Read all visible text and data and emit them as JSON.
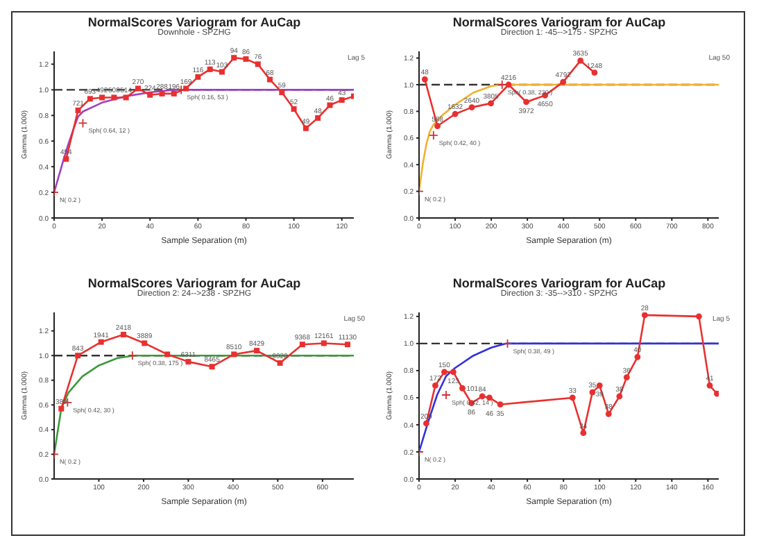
{
  "chart_data": [
    {
      "type": "line",
      "title": "NormalScores  Variogram for AuCap",
      "subtitle": "Downhole - SPZHG",
      "xlabel": "Sample Separation (m)",
      "ylabel": "Gamma (1.000)",
      "grid": false,
      "legend": false,
      "xlim": [
        0,
        125
      ],
      "xticks": [
        0,
        20,
        40,
        60,
        80,
        100,
        120
      ],
      "ylim": [
        0,
        1.3
      ],
      "yticks": [
        {
          "value": 0,
          "label": "0.0"
        },
        {
          "value": 0.2,
          "label": "0.2"
        },
        {
          "value": 0.4,
          "label": "0.4"
        },
        {
          "value": 0.6,
          "label": "0.6"
        },
        {
          "value": 0.8,
          "label": "0.8"
        },
        {
          "value": 1,
          "label": "1.0"
        },
        {
          "value": 1.2,
          "label": "1.2"
        }
      ],
      "ref_lines": [
        {
          "axis": "y",
          "value": 1,
          "color": "#333333",
          "line_style": "dashed"
        }
      ],
      "annotations": [
        {
          "text": "N( 0.2 )",
          "x": 0,
          "y": 0.2
        },
        {
          "text": "Sph( 0.64, 12 )",
          "x": 12,
          "y": 0.74
        },
        {
          "text": "Sph( 0.16, 53 )",
          "x": 53,
          "y": 1.0
        },
        "Lag 5",
        {
          "text": "454",
          "x": 5,
          "y": 0.46
        },
        {
          "text": "721",
          "x": 10,
          "y": 0.84
        },
        {
          "text": "693",
          "x": 15,
          "y": 0.93
        },
        {
          "text": "492",
          "x": 20,
          "y": 0.94
        },
        {
          "text": "508",
          "x": 25,
          "y": 0.94
        },
        {
          "text": "514",
          "x": 30,
          "y": 0.94
        },
        {
          "text": "270",
          "x": 35,
          "y": 1.01
        },
        {
          "text": "224",
          "x": 40,
          "y": 0.96
        },
        {
          "text": "288",
          "x": 45,
          "y": 0.97
        },
        {
          "text": "196",
          "x": 50,
          "y": 0.97
        },
        {
          "text": "169",
          "x": 55,
          "y": 1.01
        },
        {
          "text": "116",
          "x": 60,
          "y": 1.1
        },
        {
          "text": "113",
          "x": 65,
          "y": 1.16
        },
        {
          "text": "103",
          "x": 70,
          "y": 1.14
        },
        {
          "text": "94",
          "x": 75,
          "y": 1.25
        },
        {
          "text": "86",
          "x": 80,
          "y": 1.24
        },
        {
          "text": "76",
          "x": 85,
          "y": 1.2
        },
        {
          "text": "68",
          "x": 90,
          "y": 1.08
        },
        {
          "text": "59",
          "x": 95,
          "y": 0.98
        },
        {
          "text": "52",
          "x": 100,
          "y": 0.85
        },
        {
          "text": "49",
          "x": 105,
          "y": 0.7
        },
        {
          "text": "48",
          "x": 110,
          "y": 0.78
        },
        {
          "text": "46",
          "x": 115,
          "y": 0.88
        },
        {
          "text": "43",
          "x": 120,
          "y": 0.92
        }
      ],
      "series": [
        {
          "color": "#a040c0",
          "marker": "none",
          "x": [
            0,
            2,
            4,
            6,
            8,
            10,
            12,
            20,
            30,
            40,
            50,
            53,
            125
          ],
          "values": [
            0.2,
            0.33,
            0.46,
            0.58,
            0.69,
            0.79,
            0.83,
            0.9,
            0.95,
            0.98,
            1.0,
            1.0,
            1.0
          ]
        },
        {
          "color": "#e83030",
          "marker": "square",
          "x": [
            5,
            10,
            15,
            20,
            25,
            30,
            35,
            40,
            45,
            50,
            55,
            60,
            65,
            70,
            75,
            80,
            85,
            90,
            95,
            100,
            105,
            110,
            115,
            120,
            125
          ],
          "values": [
            0.46,
            0.84,
            0.93,
            0.94,
            0.94,
            0.94,
            1.01,
            0.96,
            0.97,
            0.97,
            1.01,
            1.1,
            1.16,
            1.14,
            1.25,
            1.24,
            1.2,
            1.08,
            0.98,
            0.85,
            0.7,
            0.78,
            0.88,
            0.92,
            0.95
          ]
        },
        {
          "type": "scatter",
          "color": "#d03030",
          "marker": "cross",
          "x": [
            0,
            12,
            53
          ],
          "values": [
            0.2,
            0.74,
            1.0
          ]
        }
      ]
    },
    {
      "type": "line",
      "title": "NormalScores  Variogram for AuCap",
      "subtitle": "Direction 1: -45-->175 - SPZHG",
      "xlabel": "Sample Separation (m)",
      "ylabel": "Gamma (1.000)",
      "grid": false,
      "legend": false,
      "xlim": [
        0,
        830
      ],
      "xticks": [
        0,
        100,
        200,
        300,
        400,
        500,
        600,
        700,
        800
      ],
      "ylim": [
        0,
        1.25
      ],
      "yticks": [
        {
          "value": 0,
          "label": "0.0"
        },
        {
          "value": 0.2,
          "label": "0.2"
        },
        {
          "value": 0.4,
          "label": "0.4"
        },
        {
          "value": 0.6,
          "label": "0.6"
        },
        {
          "value": 0.8,
          "label": "0.8"
        },
        {
          "value": 1,
          "label": "1.0"
        },
        {
          "value": 1.2,
          "label": "1.2"
        }
      ],
      "ref_lines": [
        {
          "axis": "y",
          "value": 1,
          "color": "#333333",
          "line_style": "dashed"
        }
      ],
      "annotations": [
        {
          "text": "N( 0.2 )",
          "x": 0,
          "y": 0.2
        },
        {
          "text": "Sph( 0.42, 40 )",
          "x": 40,
          "y": 0.62
        },
        {
          "text": "Sph( 0.38, 230 )",
          "x": 230,
          "y": 1.0
        },
        "Lag 50",
        {
          "text": "48",
          "x": 16,
          "y": 1.04
        },
        {
          "text": "588",
          "x": 51,
          "y": 0.69
        },
        {
          "text": "1632",
          "x": 100,
          "y": 0.78
        },
        {
          "text": "2640",
          "x": 146,
          "y": 0.83
        },
        {
          "text": "3805",
          "x": 199,
          "y": 0.86
        },
        {
          "text": "4216",
          "x": 248,
          "y": 1.0
        },
        {
          "text": "3972",
          "x": 297,
          "y": 0.87
        },
        {
          "text": "4650",
          "x": 349,
          "y": 0.92
        },
        {
          "text": "4792",
          "x": 399,
          "y": 1.02
        },
        {
          "text": "3635",
          "x": 447,
          "y": 1.18
        },
        {
          "text": "1248",
          "x": 486,
          "y": 1.09
        }
      ],
      "series": [
        {
          "color": "#f0b030",
          "marker": "none",
          "x": [
            0,
            10,
            20,
            30,
            40,
            60,
            100,
            150,
            200,
            230,
            830
          ],
          "values": [
            0.2,
            0.4,
            0.55,
            0.65,
            0.7,
            0.76,
            0.85,
            0.94,
            0.99,
            1.0,
            1.0
          ]
        },
        {
          "color": "#e83030",
          "marker": "circle",
          "x": [
            16,
            51,
            100,
            146,
            199,
            248,
            297,
            349,
            399,
            447,
            486
          ],
          "values": [
            1.04,
            0.69,
            0.78,
            0.83,
            0.86,
            1.0,
            0.87,
            0.92,
            1.02,
            1.18,
            1.09
          ]
        },
        {
          "type": "scatter",
          "color": "#d03030",
          "marker": "cross",
          "x": [
            0,
            40,
            230
          ],
          "values": [
            0.2,
            0.62,
            1.0
          ]
        }
      ]
    },
    {
      "type": "line",
      "title": "NormalScores  Variogram for AuCap",
      "subtitle": "Direction 2: 24-->238 - SPZHG",
      "xlabel": "Sample Separation (m)",
      "ylabel": "Gamma (1.000)",
      "grid": false,
      "legend": false,
      "xlim": [
        0,
        670
      ],
      "xticks": [
        100,
        200,
        300,
        400,
        500,
        600
      ],
      "ylim": [
        0,
        1.35
      ],
      "yticks": [
        {
          "value": 0,
          "label": "0.0"
        },
        {
          "value": 0.2,
          "label": "0.2"
        },
        {
          "value": 0.4,
          "label": "0.4"
        },
        {
          "value": 0.6,
          "label": "0.6"
        },
        {
          "value": 0.8,
          "label": "0.8"
        },
        {
          "value": 1,
          "label": "1.0"
        },
        {
          "value": 1.2,
          "label": "1.2"
        }
      ],
      "ref_lines": [
        {
          "axis": "y",
          "value": 1,
          "color": "#333333",
          "line_style": "dashed"
        }
      ],
      "annotations": [
        {
          "text": "N( 0.2 )",
          "x": 0,
          "y": 0.2
        },
        {
          "text": "Sph( 0.42, 30 )",
          "x": 30,
          "y": 0.62
        },
        {
          "text": "Sph( 0.38, 175 )",
          "x": 175,
          "y": 1.0
        },
        "Lag 50",
        {
          "text": "389",
          "x": 16,
          "y": 0.57
        },
        {
          "text": "843",
          "x": 53,
          "y": 1.0
        },
        {
          "text": "1941",
          "x": 105,
          "y": 1.11
        },
        {
          "text": "2418",
          "x": 155,
          "y": 1.17
        },
        {
          "text": "3889",
          "x": 202,
          "y": 1.1
        },
        {
          "text": "6311",
          "x": 300,
          "y": 0.95
        },
        {
          "text": "8465",
          "x": 353,
          "y": 0.91
        },
        {
          "text": "8510",
          "x": 402,
          "y": 1.01
        },
        {
          "text": "8429",
          "x": 453,
          "y": 1.04
        },
        {
          "text": "9020",
          "x": 505,
          "y": 0.94
        },
        {
          "text": "9368",
          "x": 555,
          "y": 1.09
        },
        {
          "text": "12161",
          "x": 603,
          "y": 1.1
        },
        {
          "text": "11130",
          "x": 656,
          "y": 1.09
        }
      ],
      "series": [
        {
          "color": "#3a9a3a",
          "marker": "none",
          "x": [
            0,
            16,
            32,
            63,
            100,
            142,
            179,
            670
          ],
          "values": [
            0.2,
            0.57,
            0.7,
            0.83,
            0.92,
            0.98,
            1.0,
            1.0
          ]
        },
        {
          "color": "#e83030",
          "marker": "square",
          "x": [
            16,
            53,
            105,
            155,
            202,
            253,
            300,
            353,
            402,
            453,
            505,
            555,
            603,
            656
          ],
          "values": [
            0.57,
            1.0,
            1.11,
            1.17,
            1.1,
            1.01,
            0.95,
            0.91,
            1.01,
            1.04,
            0.94,
            1.09,
            1.1,
            1.09
          ]
        },
        {
          "type": "scatter",
          "color": "#d03030",
          "marker": "cross",
          "x": [
            0,
            30,
            175
          ],
          "values": [
            0.2,
            0.62,
            1.0
          ]
        }
      ]
    },
    {
      "type": "line",
      "title": "NormalScores  Variogram for AuCap",
      "subtitle": "Direction 3: -35-->310 - SPZHG",
      "xlabel": "Sample Separation (m)",
      "ylabel": "Gamma (1.000)",
      "grid": false,
      "legend": false,
      "xlim": [
        0,
        166
      ],
      "xticks": [
        0,
        20,
        40,
        60,
        80,
        100,
        120,
        140,
        160
      ],
      "ylim": [
        0,
        1.23
      ],
      "yticks": [
        {
          "value": 0,
          "label": "0.0"
        },
        {
          "value": 0.2,
          "label": "0.2"
        },
        {
          "value": 0.4,
          "label": "0.4"
        },
        {
          "value": 0.6,
          "label": "0.6"
        },
        {
          "value": 0.8,
          "label": "0.8"
        },
        {
          "value": 1,
          "label": "1.0"
        },
        {
          "value": 1.2,
          "label": "1.2"
        }
      ],
      "ref_lines": [
        {
          "axis": "y",
          "value": 1,
          "color": "#333333",
          "line_style": "dashed"
        }
      ],
      "annotations": [
        {
          "text": "N( 0.2 )",
          "x": 0,
          "y": 0.2
        },
        {
          "text": "Sph( 0.42, 14 )",
          "x": 15,
          "y": 0.62
        },
        {
          "text": "Sph( 0.38, 49 )",
          "x": 49,
          "y": 1.0
        },
        "Lag 5",
        {
          "text": "209",
          "x": 4,
          "y": 0.41
        },
        {
          "text": "172",
          "x": 9,
          "y": 0.69
        },
        {
          "text": "150",
          "x": 14,
          "y": 0.79
        },
        {
          "text": "123",
          "x": 19,
          "y": 0.79
        },
        {
          "text": "101",
          "x": 24,
          "y": 0.67
        },
        {
          "text": "86",
          "x": 29,
          "y": 0.56
        },
        {
          "text": "84",
          "x": 35,
          "y": 0.61
        },
        {
          "text": "46",
          "x": 39,
          "y": 0.6
        },
        {
          "text": "35",
          "x": 45,
          "y": 0.55
        },
        {
          "text": "33",
          "x": 85,
          "y": 0.6
        },
        {
          "text": "34",
          "x": 91,
          "y": 0.34
        },
        {
          "text": "35",
          "x": 96,
          "y": 0.64
        },
        {
          "text": "39",
          "x": 100,
          "y": 0.69
        },
        {
          "text": "38",
          "x": 105,
          "y": 0.48
        },
        {
          "text": "38",
          "x": 111,
          "y": 0.61
        },
        {
          "text": "36",
          "x": 115,
          "y": 0.75
        },
        {
          "text": "40",
          "x": 121,
          "y": 0.9
        },
        {
          "text": "28",
          "x": 125,
          "y": 1.21
        },
        {
          "text": "41",
          "x": 161,
          "y": 0.69
        }
      ],
      "series": [
        {
          "color": "#3030e0",
          "marker": "none",
          "x": [
            0,
            5,
            10,
            15,
            20,
            30,
            40,
            48,
            166
          ],
          "values": [
            0.2,
            0.42,
            0.62,
            0.76,
            0.82,
            0.91,
            0.97,
            1.0,
            1.0
          ]
        },
        {
          "color": "#e83030",
          "marker": "circle",
          "x": [
            4,
            9,
            14,
            19,
            24,
            29,
            35,
            39,
            45,
            85,
            91,
            96,
            100,
            105,
            111,
            115,
            121,
            125,
            155,
            161,
            165
          ],
          "values": [
            0.41,
            0.69,
            0.79,
            0.79,
            0.67,
            0.56,
            0.61,
            0.6,
            0.55,
            0.6,
            0.34,
            0.64,
            0.69,
            0.48,
            0.61,
            0.75,
            0.9,
            1.21,
            1.2,
            0.69,
            0.63
          ]
        },
        {
          "type": "scatter",
          "color": "#d03030",
          "marker": "cross",
          "x": [
            0,
            15,
            49
          ],
          "values": [
            0.2,
            0.62,
            1.0
          ]
        }
      ]
    }
  ]
}
